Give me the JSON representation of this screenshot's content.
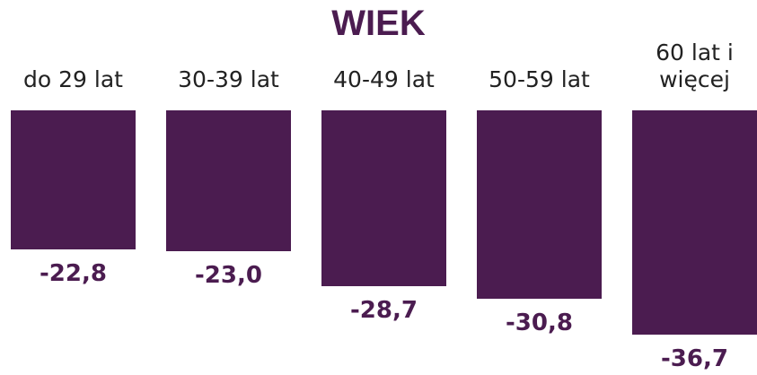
{
  "chart_data": {
    "type": "bar",
    "title": "WIEK",
    "categories": [
      "do 29 lat",
      "30-39 lat",
      "40-49 lat",
      "50-59 lat",
      "60 lat i więcej"
    ],
    "values": [
      -22.8,
      -23.0,
      -28.7,
      -30.8,
      -36.7
    ],
    "value_labels": [
      "-22,8",
      "-23,0",
      "-28,7",
      "-30,8",
      "-36,7"
    ],
    "color": "#4b1c50"
  }
}
